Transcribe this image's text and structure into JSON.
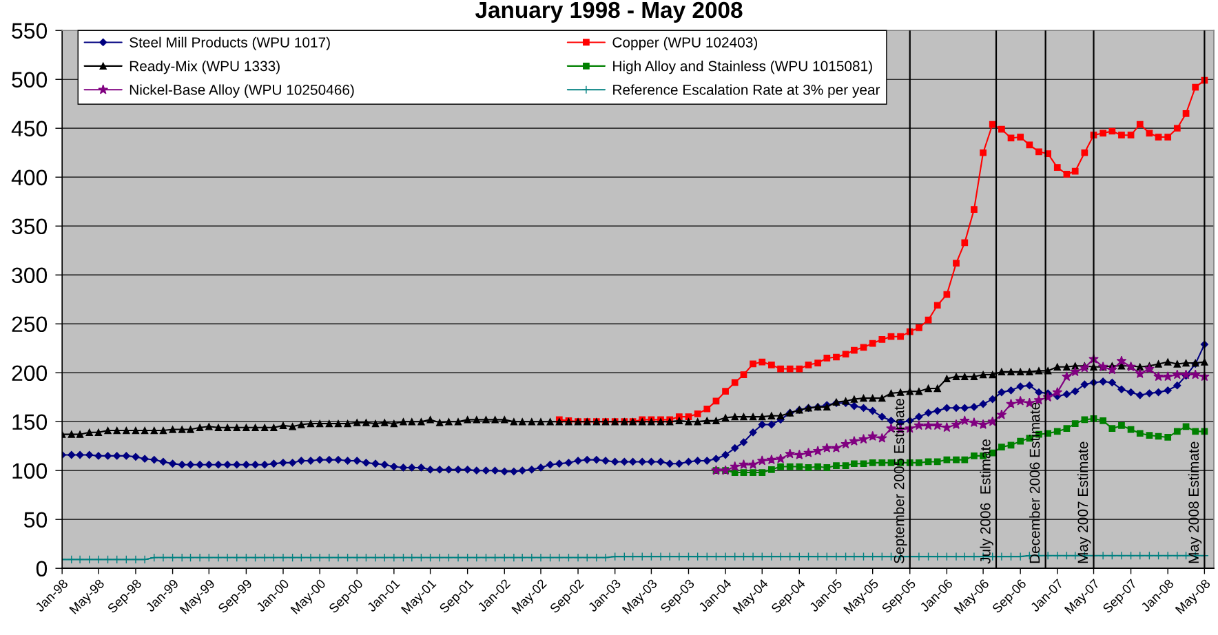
{
  "chart_data": {
    "type": "line",
    "title": "January 1998 - May 2008",
    "x": [
      "1998-01",
      "1998-02",
      "1998-03",
      "1998-04",
      "1998-05",
      "1998-06",
      "1998-07",
      "1998-08",
      "1998-09",
      "1998-10",
      "1998-11",
      "1998-12",
      "1999-01",
      "1999-02",
      "1999-03",
      "1999-04",
      "1999-05",
      "1999-06",
      "1999-07",
      "1999-08",
      "1999-09",
      "1999-10",
      "1999-11",
      "1999-12",
      "2000-01",
      "2000-02",
      "2000-03",
      "2000-04",
      "2000-05",
      "2000-06",
      "2000-07",
      "2000-08",
      "2000-09",
      "2000-10",
      "2000-11",
      "2000-12",
      "2001-01",
      "2001-02",
      "2001-03",
      "2001-04",
      "2001-05",
      "2001-06",
      "2001-07",
      "2001-08",
      "2001-09",
      "2001-10",
      "2001-11",
      "2001-12",
      "2002-01",
      "2002-02",
      "2002-03",
      "2002-04",
      "2002-05",
      "2002-06",
      "2002-07",
      "2002-08",
      "2002-09",
      "2002-10",
      "2002-11",
      "2002-12",
      "2003-01",
      "2003-02",
      "2003-03",
      "2003-04",
      "2003-05",
      "2003-06",
      "2003-07",
      "2003-08",
      "2003-09",
      "2003-10",
      "2003-11",
      "2003-12",
      "2004-01",
      "2004-02",
      "2004-03",
      "2004-04",
      "2004-05",
      "2004-06",
      "2004-07",
      "2004-08",
      "2004-09",
      "2004-10",
      "2004-11",
      "2004-12",
      "2005-01",
      "2005-02",
      "2005-03",
      "2005-04",
      "2005-05",
      "2005-06",
      "2005-07",
      "2005-08",
      "2005-09",
      "2005-10",
      "2005-11",
      "2005-12",
      "2006-01",
      "2006-02",
      "2006-03",
      "2006-04",
      "2006-05",
      "2006-06",
      "2006-07",
      "2006-08",
      "2006-09",
      "2006-10",
      "2006-11",
      "2006-12",
      "2007-01",
      "2007-02",
      "2007-03",
      "2007-04",
      "2007-05",
      "2007-06",
      "2007-07",
      "2007-08",
      "2007-09",
      "2007-10",
      "2007-11",
      "2007-12",
      "2008-01",
      "2008-02",
      "2008-03",
      "2008-04",
      "2008-05"
    ],
    "xlim": [
      "1998-01",
      "2008-06"
    ],
    "xticks": [
      {
        "value": "1998-01",
        "label": "Jan-98"
      },
      {
        "value": "1998-05",
        "label": "May-98"
      },
      {
        "value": "1998-09",
        "label": "Sep-98"
      },
      {
        "value": "1999-01",
        "label": "Jan-99"
      },
      {
        "value": "1999-05",
        "label": "May-99"
      },
      {
        "value": "1999-09",
        "label": "Sep-99"
      },
      {
        "value": "2000-01",
        "label": "Jan-00"
      },
      {
        "value": "2000-05",
        "label": "May-00"
      },
      {
        "value": "2000-09",
        "label": "Sep-00"
      },
      {
        "value": "2001-01",
        "label": "Jan-01"
      },
      {
        "value": "2001-05",
        "label": "May-01"
      },
      {
        "value": "2001-09",
        "label": "Sep-01"
      },
      {
        "value": "2002-01",
        "label": "Jan-02"
      },
      {
        "value": "2002-05",
        "label": "May-02"
      },
      {
        "value": "2002-09",
        "label": "Sep-02"
      },
      {
        "value": "2003-01",
        "label": "Jan-03"
      },
      {
        "value": "2003-05",
        "label": "May-03"
      },
      {
        "value": "2003-09",
        "label": "Sep-03"
      },
      {
        "value": "2004-01",
        "label": "Jan-04"
      },
      {
        "value": "2004-05",
        "label": "May-04"
      },
      {
        "value": "2004-09",
        "label": "Sep-04"
      },
      {
        "value": "2005-01",
        "label": "Jan-05"
      },
      {
        "value": "2005-05",
        "label": "May-05"
      },
      {
        "value": "2005-09",
        "label": "Sep-05"
      },
      {
        "value": "2006-01",
        "label": "Jan-06"
      },
      {
        "value": "2006-05",
        "label": "May-06"
      },
      {
        "value": "2006-09",
        "label": "Sep-06"
      },
      {
        "value": "2007-01",
        "label": "Jan-07"
      },
      {
        "value": "2007-05",
        "label": "May-07"
      },
      {
        "value": "2007-09",
        "label": "Sep-07"
      },
      {
        "value": "2008-01",
        "label": "Jan-08"
      },
      {
        "value": "2008-05",
        "label": "May-08"
      }
    ],
    "ylim": [
      0,
      550
    ],
    "yticks": [
      0,
      50,
      100,
      150,
      200,
      250,
      300,
      350,
      400,
      450,
      500,
      550
    ],
    "grid": "y",
    "legend": "top left",
    "series": [
      {
        "name": "Steel Mill Products (WPU 1017)",
        "color": "#000080",
        "marker": "diamond",
        "values": [
          116,
          116,
          116,
          116,
          115,
          115,
          115,
          115,
          114,
          112,
          111,
          109,
          107,
          106,
          106,
          106,
          106,
          106,
          106,
          106,
          106,
          106,
          106,
          107,
          108,
          108,
          110,
          110,
          111,
          111,
          111,
          110,
          110,
          108,
          107,
          106,
          104,
          103,
          103,
          103,
          101,
          101,
          101,
          101,
          101,
          100,
          100,
          100,
          99,
          99,
          100,
          101,
          103,
          106,
          107,
          108,
          110,
          111,
          111,
          110,
          109,
          109,
          109,
          109,
          109,
          109,
          107,
          107,
          109,
          110,
          110,
          112,
          116,
          123,
          129,
          139,
          147,
          147,
          152,
          159,
          162,
          164,
          165,
          167,
          169,
          169,
          166,
          164,
          161,
          155,
          151,
          149,
          151,
          155,
          159,
          161,
          164,
          164,
          164,
          165,
          168,
          173,
          180,
          182,
          186,
          187,
          180,
          179,
          176,
          178,
          181,
          188,
          190,
          191,
          190,
          183,
          180,
          177,
          179,
          180,
          182,
          187,
          197,
          209,
          229
        ]
      },
      {
        "name": "Copper (WPU 102403)",
        "color": "#ff0000",
        "marker": "square",
        "values": [
          null,
          null,
          null,
          null,
          null,
          null,
          null,
          null,
          null,
          null,
          null,
          null,
          null,
          null,
          null,
          null,
          null,
          null,
          null,
          null,
          null,
          null,
          null,
          null,
          null,
          null,
          null,
          null,
          null,
          null,
          null,
          null,
          null,
          null,
          null,
          null,
          null,
          null,
          null,
          null,
          null,
          null,
          null,
          null,
          null,
          null,
          null,
          null,
          null,
          null,
          null,
          null,
          null,
          null,
          152,
          151,
          150,
          150,
          150,
          150,
          150,
          150,
          150,
          152,
          152,
          152,
          152,
          155,
          155,
          158,
          163,
          171,
          181,
          190,
          198,
          209,
          211,
          208,
          204,
          204,
          204,
          208,
          210,
          215,
          216,
          219,
          223,
          226,
          230,
          234,
          237,
          237,
          242,
          246,
          254,
          269,
          280,
          312,
          333,
          367,
          425,
          454,
          449,
          440,
          441,
          433,
          426,
          424,
          410,
          403,
          406,
          425,
          443,
          445,
          447,
          443,
          443,
          454,
          445,
          441,
          441,
          450,
          465,
          492,
          499
        ]
      },
      {
        "name": "Ready-Mix (WPU 1333)",
        "color": "#000000",
        "marker": "triangle",
        "values": [
          137,
          137,
          137,
          139,
          139,
          141,
          141,
          141,
          141,
          141,
          141,
          141,
          142,
          142,
          142,
          144,
          145,
          144,
          144,
          144,
          144,
          144,
          144,
          144,
          146,
          145,
          147,
          148,
          148,
          148,
          148,
          148,
          149,
          149,
          148,
          149,
          148,
          150,
          150,
          150,
          152,
          149,
          150,
          150,
          152,
          152,
          152,
          152,
          152,
          150,
          150,
          150,
          150,
          150,
          150,
          150,
          150,
          150,
          150,
          150,
          150,
          150,
          150,
          150,
          150,
          150,
          150,
          151,
          150,
          150,
          151,
          151,
          154,
          155,
          155,
          155,
          155,
          156,
          156,
          159,
          162,
          164,
          165,
          165,
          170,
          171,
          173,
          174,
          174,
          174,
          179,
          180,
          181,
          181,
          184,
          184,
          194,
          196,
          196,
          196,
          198,
          198,
          201,
          201,
          201,
          201,
          202,
          202,
          206,
          206,
          207,
          207,
          206,
          206,
          207,
          207,
          207,
          206,
          207,
          209,
          211,
          209,
          210,
          210,
          211
        ]
      },
      {
        "name": "High Alloy and Stainless (WPU 1015081)",
        "color": "#008000",
        "marker": "square",
        "values": [
          null,
          null,
          null,
          null,
          null,
          null,
          null,
          null,
          null,
          null,
          null,
          null,
          null,
          null,
          null,
          null,
          null,
          null,
          null,
          null,
          null,
          null,
          null,
          null,
          null,
          null,
          null,
          null,
          null,
          null,
          null,
          null,
          null,
          null,
          null,
          null,
          null,
          null,
          null,
          null,
          null,
          null,
          null,
          null,
          null,
          null,
          null,
          null,
          null,
          null,
          null,
          null,
          null,
          null,
          null,
          null,
          null,
          null,
          null,
          null,
          null,
          null,
          null,
          null,
          null,
          null,
          null,
          null,
          null,
          null,
          null,
          100,
          100,
          98,
          98,
          98,
          98,
          101,
          104,
          104,
          104,
          103,
          104,
          103,
          105,
          105,
          107,
          107,
          108,
          108,
          108,
          108,
          108,
          108,
          109,
          109,
          111,
          111,
          111,
          115,
          115,
          118,
          124,
          126,
          130,
          133,
          137,
          138,
          140,
          143,
          148,
          152,
          153,
          151,
          143,
          146,
          142,
          138,
          136,
          135,
          134,
          140,
          145,
          140,
          140
        ]
      },
      {
        "name": "Nickel-Base Alloy (WPU 10250466)",
        "color": "#800080",
        "marker": "star",
        "values": [
          null,
          null,
          null,
          null,
          null,
          null,
          null,
          null,
          null,
          null,
          null,
          null,
          null,
          null,
          null,
          null,
          null,
          null,
          null,
          null,
          null,
          null,
          null,
          null,
          null,
          null,
          null,
          null,
          null,
          null,
          null,
          null,
          null,
          null,
          null,
          null,
          null,
          null,
          null,
          null,
          null,
          null,
          null,
          null,
          null,
          null,
          null,
          null,
          null,
          null,
          null,
          null,
          null,
          null,
          null,
          null,
          null,
          null,
          null,
          null,
          null,
          null,
          null,
          null,
          null,
          null,
          null,
          null,
          null,
          null,
          null,
          100,
          100,
          104,
          106,
          106,
          110,
          111,
          112,
          117,
          116,
          118,
          120,
          123,
          123,
          127,
          130,
          132,
          135,
          133,
          143,
          142,
          143,
          146,
          146,
          146,
          144,
          147,
          151,
          149,
          147,
          150,
          157,
          168,
          171,
          169,
          172,
          175,
          180,
          196,
          201,
          205,
          214,
          206,
          203,
          212,
          206,
          199,
          204,
          196,
          196,
          198,
          198,
          198,
          196
        ]
      },
      {
        "name": "Reference Escalation Rate at 3% per year",
        "color": "#008080",
        "marker": "cross",
        "values": [
          9,
          9,
          9,
          9,
          9,
          9,
          9,
          9,
          9,
          9,
          11,
          11,
          11,
          11,
          11,
          11,
          11,
          11,
          11,
          11,
          11,
          11,
          11,
          11,
          11,
          11,
          11,
          11,
          11,
          11,
          11,
          11,
          11,
          11,
          11,
          11,
          11,
          11,
          11,
          11,
          11,
          11,
          11,
          11,
          11,
          11,
          11,
          11,
          11,
          11,
          11,
          11,
          11,
          11,
          11,
          11,
          11,
          11,
          11,
          11,
          12,
          12,
          12,
          12,
          12,
          12,
          12,
          12,
          12,
          12,
          12,
          12,
          12,
          12,
          12,
          12,
          12,
          12,
          12,
          12,
          12,
          12,
          12,
          12,
          12,
          12,
          12,
          12,
          12,
          12,
          12,
          12,
          12,
          12,
          12,
          12,
          12,
          12,
          12,
          12,
          12,
          12,
          12,
          12,
          12,
          13,
          13,
          13,
          13,
          13,
          13,
          13,
          13,
          13,
          13,
          13,
          13,
          13,
          13,
          13,
          13,
          13,
          13,
          13,
          13
        ]
      }
    ],
    "ref_lines": [
      {
        "axis": "x",
        "value": "2005-09",
        "label": "September 2005 Estimate",
        "color": "#000000"
      },
      {
        "axis": "x",
        "value": "2006-06-13",
        "label": "July 2006  Estimate",
        "color": "#000000"
      },
      {
        "axis": "x",
        "value": "2006-11-23",
        "label": "December 2006 Estimate",
        "color": "#000000"
      },
      {
        "axis": "x",
        "value": "2007-05",
        "label": "May 2007 Estimate",
        "color": "#000000"
      },
      {
        "axis": "x",
        "value": "2008-05",
        "label": "May 2008 Estimate",
        "color": "#000000"
      }
    ]
  }
}
